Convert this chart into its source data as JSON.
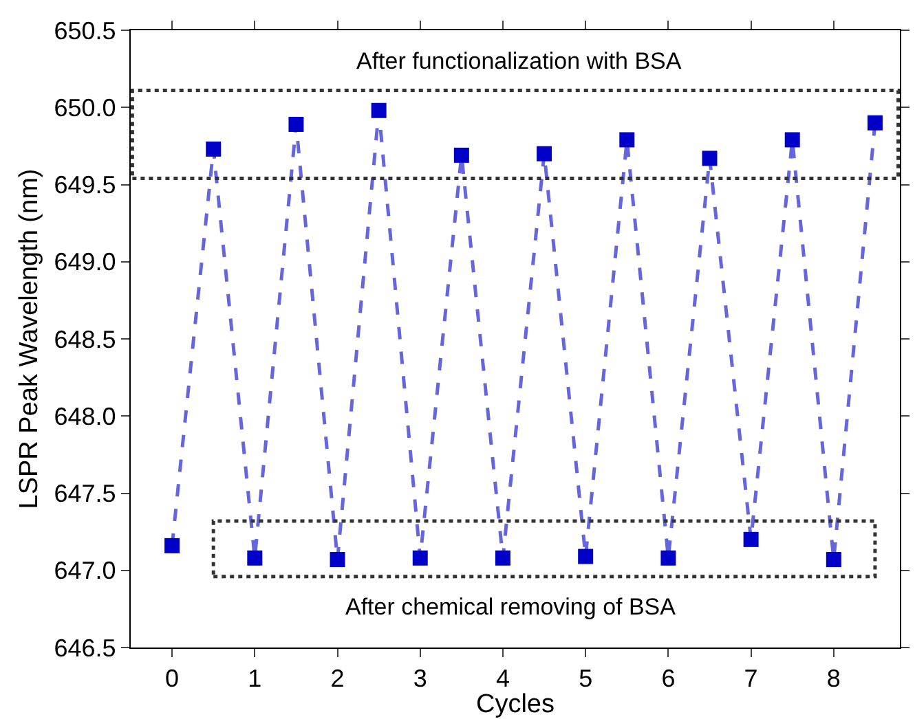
{
  "chart_data": {
    "type": "line",
    "xlabel": "Cycles",
    "ylabel": "LSPR Peak Wavelength (nm)",
    "x": [
      0,
      0.5,
      1,
      1.5,
      2,
      2.5,
      3,
      3.5,
      4,
      4.5,
      5,
      5.5,
      6,
      6.5,
      7,
      7.5,
      8,
      8.5
    ],
    "series": [
      {
        "color": "#0000c8",
        "values": [
          647.16,
          649.73,
          647.08,
          649.89,
          647.07,
          649.98,
          647.08,
          649.69,
          647.08,
          649.7,
          647.09,
          649.79,
          647.08,
          649.67,
          647.2,
          649.79,
          647.07,
          649.9
        ]
      }
    ],
    "xlim": [
      -0.5,
      8.8
    ],
    "xticks": [
      0,
      1,
      2,
      3,
      4,
      5,
      6,
      7,
      8
    ],
    "ylim": [
      646.5,
      650.5
    ],
    "yticks": [
      646.5,
      {
        "value": 647,
        "label": "647.0"
      },
      647.5,
      {
        "value": 648,
        "label": "648.0"
      },
      648.5,
      {
        "value": 649,
        "label": "649.0"
      },
      649.5,
      {
        "value": 650,
        "label": "650.0"
      },
      650.5
    ],
    "annotations": [
      "After functionalization with BSA",
      "After chemical removing of BSA"
    ],
    "marker": "square",
    "line_style": "dashed"
  }
}
